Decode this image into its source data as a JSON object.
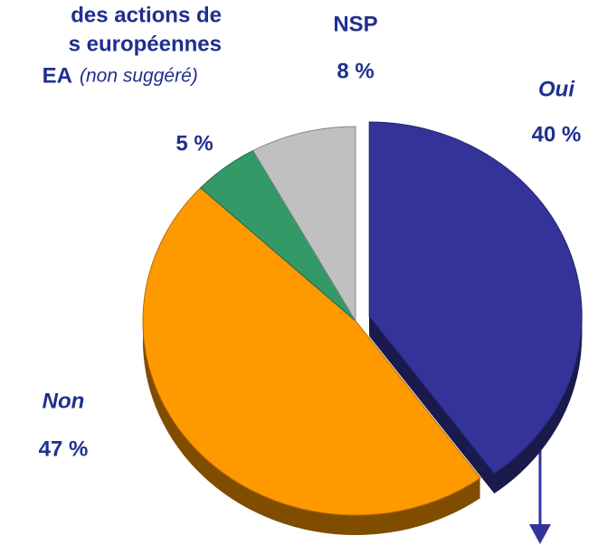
{
  "chart_data": {
    "type": "pie",
    "title_lines": [
      "des actions de",
      "s européennes",
      "EA"
    ],
    "subtitle": "(non suggéré)",
    "categories": [
      "Oui",
      "Non",
      null,
      "NSP"
    ],
    "values": [
      40,
      47,
      5,
      8
    ],
    "value_labels": [
      "40 %",
      "47 %",
      "5 %",
      "8 %"
    ],
    "colors": [
      "#333399",
      "#ff9900",
      "#339966",
      "#c0c0c0"
    ]
  }
}
